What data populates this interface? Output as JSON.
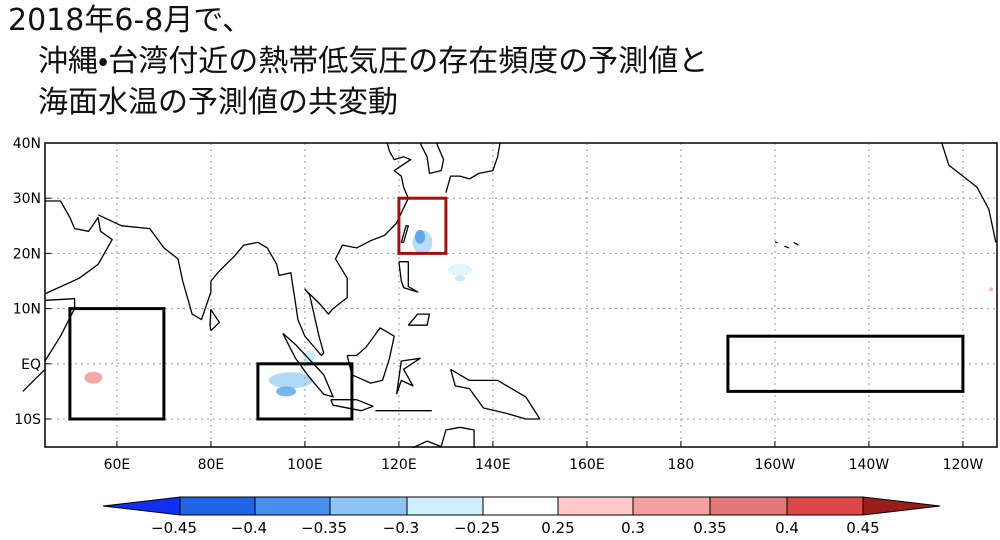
{
  "title": {
    "lines": [
      "2018年6-8月で、",
      "沖縄・台湾付近の熱帯低気圧の存在頻度の予測値と",
      "海面水温の予測値の共変動"
    ]
  },
  "map": {
    "lon_labels": [
      "60E",
      "80E",
      "100E",
      "120E",
      "140E",
      "160E",
      "180",
      "160W",
      "140W",
      "120W"
    ],
    "lat_labels": [
      "40N",
      "30N",
      "20N",
      "10N",
      "EQ",
      "10S"
    ]
  },
  "colorbar": {
    "labels": [
      "−0.45",
      "−0.4",
      "−0.35",
      "−0.3",
      "−0.25",
      "0.25",
      "0.3",
      "0.35",
      "0.4",
      "0.45"
    ]
  }
}
